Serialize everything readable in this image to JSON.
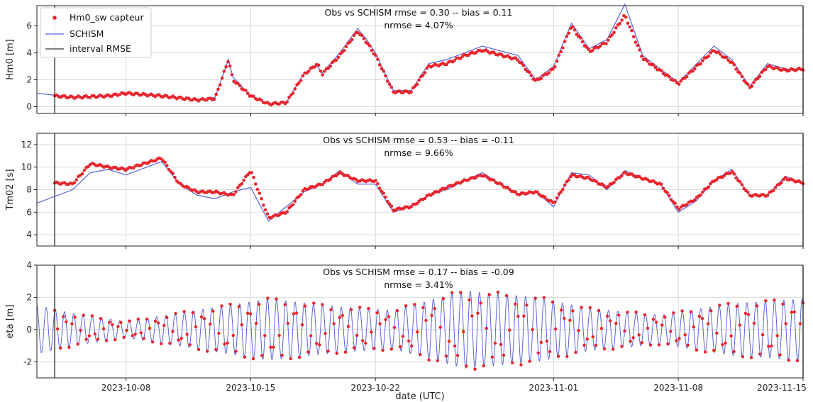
{
  "chart_data": {
    "type": "line",
    "xlabel": "date (UTC)",
    "x_range": [
      "2023-10-03",
      "2023-11-15"
    ],
    "x_ticks": [
      "2023-10-08",
      "2023-10-15",
      "2023-10-22",
      "2023-11-01",
      "2023-11-08",
      "2023-11-15"
    ],
    "rmse_interval": [
      "2023-10-04",
      "2023-11-15"
    ],
    "legend": {
      "placement": "upper-left",
      "entries": [
        "Hm0_sw capteur",
        "SCHISM",
        "interval RMSE"
      ]
    },
    "colors": {
      "obs": "#e8242c",
      "model": "#5a63d6",
      "interval": "#333333",
      "grid": "#d9d9d9"
    },
    "grid": true,
    "panels": [
      {
        "ylabel": "Hm0 [m]",
        "ylim": [
          -0.5,
          7.5
        ],
        "yticks": [
          0,
          2,
          4,
          6
        ],
        "annotation": [
          "Obs vs SCHISM rmse = 0.30 -- bias = 0.11",
          "nrmse = 4.07%"
        ],
        "series": [
          {
            "name": "SCHISM",
            "role": "model",
            "x": [
              "2023-10-03",
              "2023-10-05",
              "2023-10-07",
              "2023-10-08",
              "2023-10-10",
              "2023-10-12",
              "2023-10-13",
              "2023-10-13T18",
              "2023-10-14",
              "2023-10-15",
              "2023-10-16",
              "2023-10-17",
              "2023-10-18",
              "2023-10-18T18",
              "2023-10-19",
              "2023-10-20",
              "2023-10-21",
              "2023-10-21T12",
              "2023-10-22",
              "2023-10-23",
              "2023-10-24",
              "2023-10-25",
              "2023-10-26",
              "2023-10-27",
              "2023-10-28",
              "2023-10-30",
              "2023-10-31",
              "2023-11-01",
              "2023-11-02",
              "2023-11-03",
              "2023-11-04",
              "2023-11-05",
              "2023-11-06",
              "2023-11-08",
              "2023-11-10",
              "2023-11-11",
              "2023-11-12",
              "2023-11-13",
              "2023-11-14",
              "2023-11-15"
            ],
            "y": [
              1.0,
              0.7,
              0.8,
              1.0,
              0.8,
              0.5,
              0.7,
              3.5,
              2.2,
              0.8,
              0.2,
              0.3,
              2.5,
              3.0,
              2.5,
              4.0,
              5.8,
              5.0,
              4.0,
              1.2,
              1.2,
              3.2,
              3.5,
              4.0,
              4.5,
              3.8,
              2.0,
              3.0,
              6.2,
              4.3,
              5.0,
              7.6,
              3.8,
              1.8,
              4.5,
              3.5,
              1.5,
              3.2,
              2.8,
              2.8
            ]
          },
          {
            "name": "Hm0_sw capteur",
            "role": "obs",
            "x": [
              "2023-10-04",
              "2023-10-05",
              "2023-10-07",
              "2023-10-08",
              "2023-10-10",
              "2023-10-12",
              "2023-10-13",
              "2023-10-13T18",
              "2023-10-14",
              "2023-10-15",
              "2023-10-16",
              "2023-10-17",
              "2023-10-18",
              "2023-10-18T18",
              "2023-10-19",
              "2023-10-20",
              "2023-10-21",
              "2023-10-21T12",
              "2023-10-22",
              "2023-10-23",
              "2023-10-24",
              "2023-10-25",
              "2023-10-26",
              "2023-10-27",
              "2023-10-28",
              "2023-10-30",
              "2023-10-31",
              "2023-11-01",
              "2023-11-02",
              "2023-11-03",
              "2023-11-04",
              "2023-11-05",
              "2023-11-06",
              "2023-11-08",
              "2023-11-10",
              "2023-11-11",
              "2023-11-12",
              "2023-11-13",
              "2023-11-14",
              "2023-11-15"
            ],
            "y": [
              0.8,
              0.7,
              0.8,
              1.0,
              0.8,
              0.5,
              0.6,
              3.5,
              2.0,
              0.8,
              0.2,
              0.3,
              2.4,
              3.2,
              2.4,
              3.8,
              5.6,
              4.8,
              3.8,
              1.1,
              1.1,
              3.0,
              3.2,
              3.8,
              4.2,
              3.5,
              1.9,
              2.8,
              6.0,
              4.1,
              4.8,
              6.8,
              3.6,
              1.7,
              4.2,
              3.3,
              1.4,
              3.0,
              2.7,
              2.8
            ]
          }
        ]
      },
      {
        "ylabel": "Tm02 [s]",
        "ylim": [
          3,
          13
        ],
        "yticks": [
          4,
          6,
          8,
          10,
          12
        ],
        "annotation": [
          "Obs vs SCHISM rmse = 0.53 -- bias = -0.11",
          "nrmse = 9.66%"
        ],
        "series": [
          {
            "name": "SCHISM",
            "role": "model",
            "x": [
              "2023-10-03",
              "2023-10-05",
              "2023-10-06",
              "2023-10-07",
              "2023-10-08",
              "2023-10-10",
              "2023-10-11",
              "2023-10-12",
              "2023-10-13",
              "2023-10-14",
              "2023-10-15",
              "2023-10-16",
              "2023-10-17",
              "2023-10-18",
              "2023-10-19",
              "2023-10-20",
              "2023-10-21",
              "2023-10-22",
              "2023-10-23",
              "2023-10-24",
              "2023-10-25",
              "2023-10-26",
              "2023-10-27",
              "2023-10-28",
              "2023-10-29",
              "2023-10-30",
              "2023-10-31",
              "2023-11-01",
              "2023-11-02",
              "2023-11-03",
              "2023-11-04",
              "2023-11-05",
              "2023-11-06",
              "2023-11-07",
              "2023-11-08",
              "2023-11-09",
              "2023-11-10",
              "2023-11-11",
              "2023-11-12",
              "2023-11-13",
              "2023-11-14",
              "2023-11-15"
            ],
            "y": [
              6.8,
              8.0,
              9.5,
              9.8,
              9.3,
              10.5,
              8.5,
              7.5,
              7.2,
              7.8,
              8.2,
              5.2,
              6.5,
              7.8,
              8.5,
              9.7,
              8.5,
              8.5,
              6.0,
              6.5,
              7.5,
              8.0,
              8.8,
              9.5,
              8.5,
              7.5,
              7.8,
              6.5,
              9.5,
              9.3,
              8.0,
              9.7,
              9.0,
              8.5,
              6.0,
              7.0,
              8.8,
              9.8,
              7.5,
              7.5,
              9.2,
              8.5
            ]
          },
          {
            "name": "Hm0_sw capteur",
            "role": "obs",
            "x": [
              "2023-10-04",
              "2023-10-05",
              "2023-10-06",
              "2023-10-07",
              "2023-10-08",
              "2023-10-10",
              "2023-10-11",
              "2023-10-12",
              "2023-10-13",
              "2023-10-14",
              "2023-10-15",
              "2023-10-16",
              "2023-10-17",
              "2023-10-18",
              "2023-10-19",
              "2023-10-20",
              "2023-10-21",
              "2023-10-22",
              "2023-10-23",
              "2023-10-24",
              "2023-10-25",
              "2023-10-26",
              "2023-10-27",
              "2023-10-28",
              "2023-10-29",
              "2023-10-30",
              "2023-10-31",
              "2023-11-01",
              "2023-11-02",
              "2023-11-03",
              "2023-11-04",
              "2023-11-05",
              "2023-11-06",
              "2023-11-07",
              "2023-11-08",
              "2023-11-09",
              "2023-11-10",
              "2023-11-11",
              "2023-11-12",
              "2023-11-13",
              "2023-11-14",
              "2023-11-15"
            ],
            "y": [
              8.6,
              8.5,
              10.3,
              10.0,
              9.8,
              10.8,
              8.5,
              7.8,
              7.8,
              7.5,
              9.7,
              5.5,
              6.0,
              8.0,
              8.5,
              9.5,
              8.8,
              8.8,
              6.2,
              6.5,
              7.5,
              8.2,
              8.8,
              9.3,
              8.5,
              7.6,
              7.8,
              6.8,
              9.3,
              9.0,
              8.2,
              9.5,
              9.0,
              8.5,
              6.3,
              7.2,
              8.8,
              9.6,
              7.5,
              7.5,
              9.0,
              8.6
            ]
          }
        ]
      },
      {
        "ylabel": "eta [m]",
        "ylim": [
          -3,
          4
        ],
        "yticks": [
          -2,
          0,
          2,
          4
        ],
        "annotation": [
          "Obs vs SCHISM rmse = 0.17 -- bias = -0.09",
          "nrmse = 3.41%"
        ],
        "tide": {
          "period_days": 0.5175,
          "amplitude_envelope": {
            "x": [
              "2023-10-03",
              "2023-10-05",
              "2023-10-08",
              "2023-10-12",
              "2023-10-16",
              "2023-10-20",
              "2023-10-23",
              "2023-10-27",
              "2023-10-31",
              "2023-11-03",
              "2023-11-07",
              "2023-11-11",
              "2023-11-15"
            ],
            "y": [
              1.5,
              1.0,
              0.5,
              1.2,
              1.9,
              1.4,
              1.2,
              2.4,
              2.0,
              1.3,
              0.9,
              1.6,
              1.9
            ]
          }
        }
      }
    ]
  }
}
